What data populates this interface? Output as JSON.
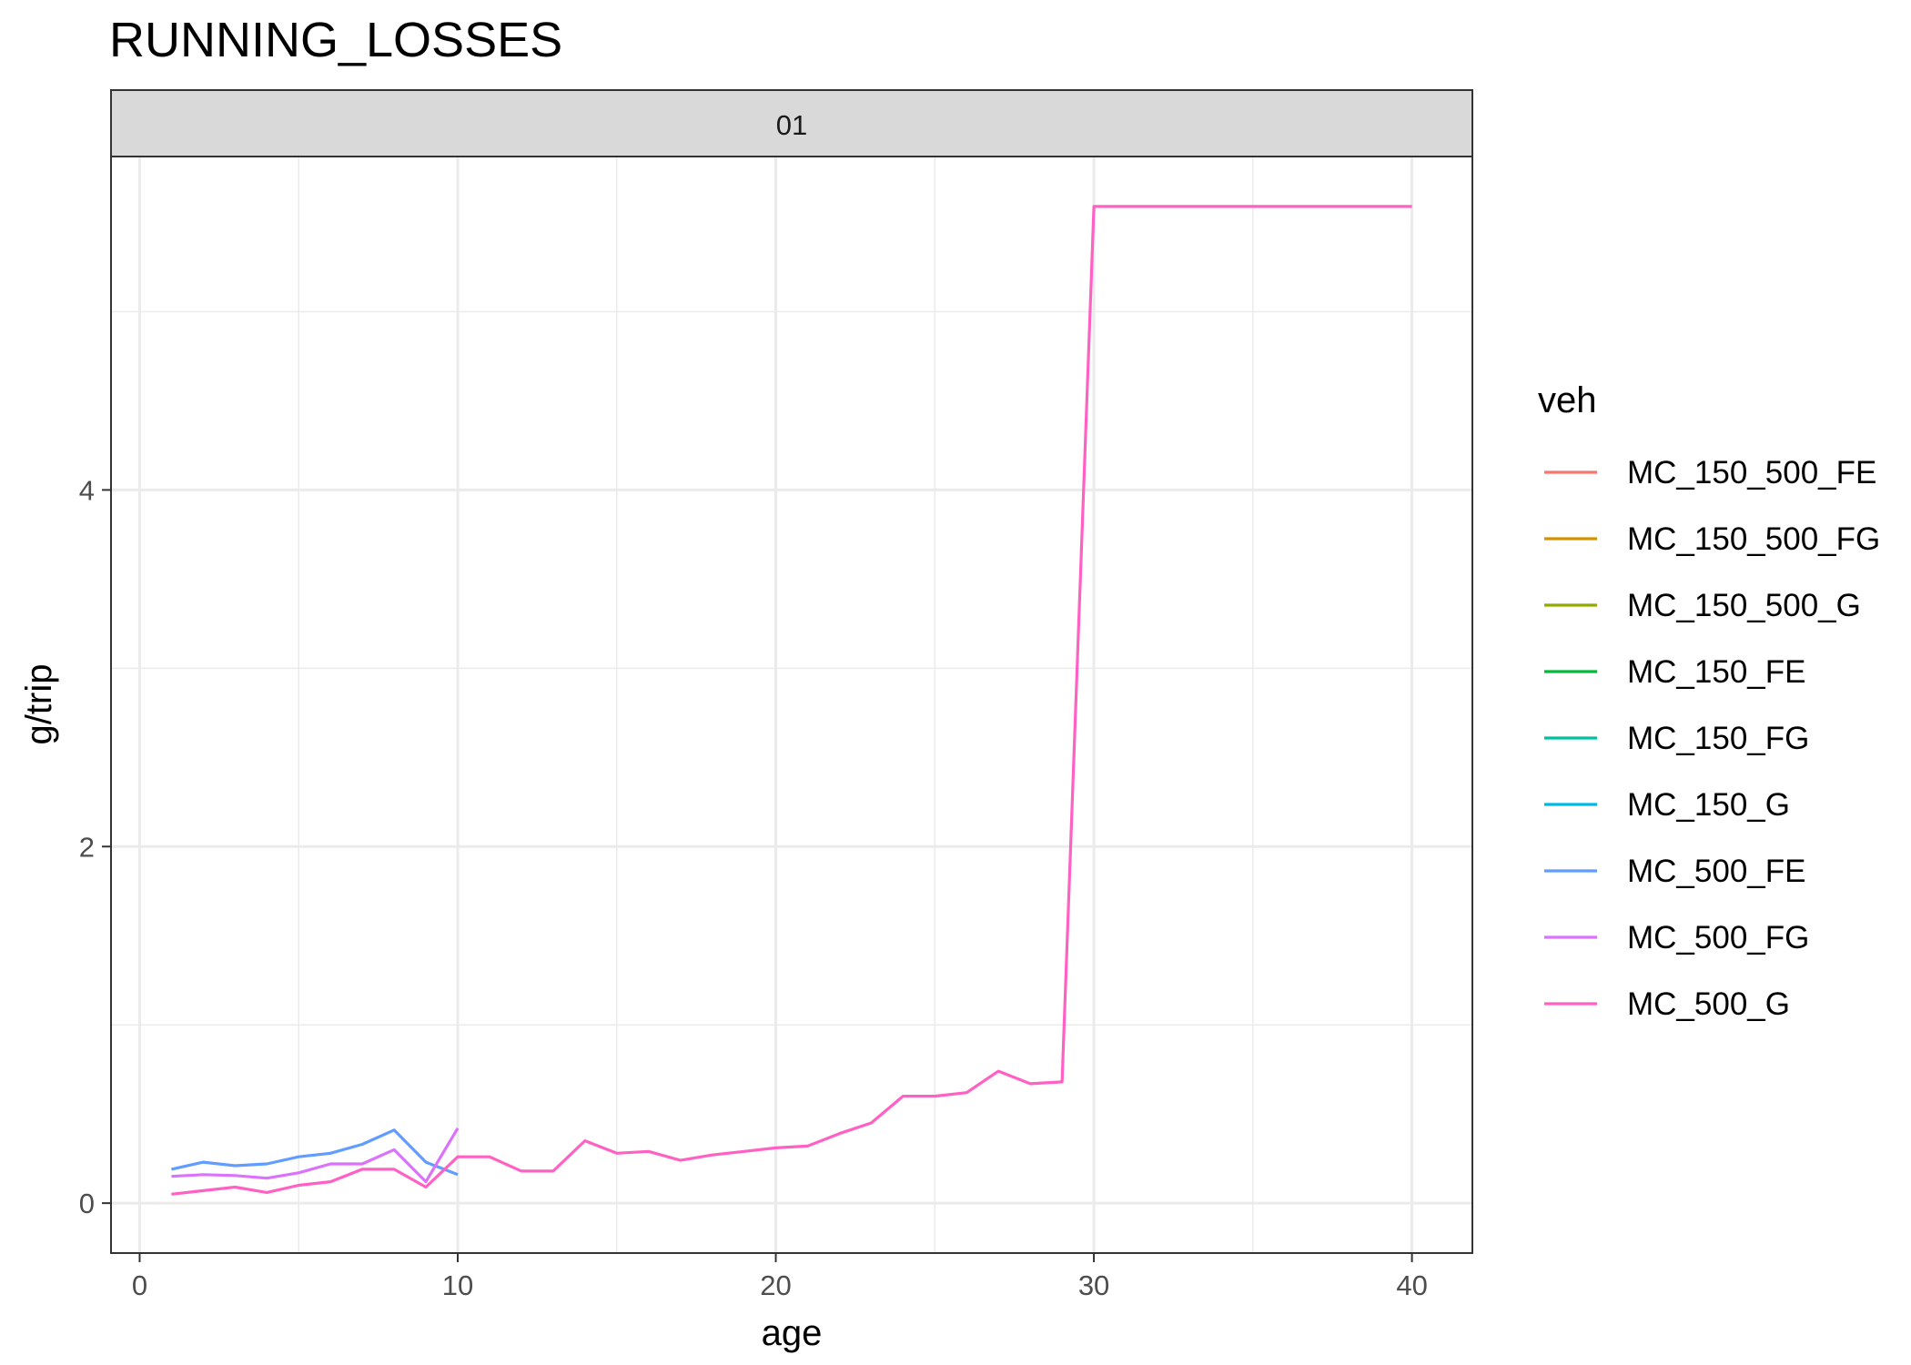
{
  "chart_data": {
    "type": "line",
    "title": "RUNNING_LOSSES",
    "facet_label": "01",
    "xlabel": "age",
    "ylabel": "g/trip",
    "xlim": [
      -0.9,
      41.9
    ],
    "ylim": [
      -0.28,
      5.87
    ],
    "x_ticks": [
      0,
      10,
      20,
      30,
      40
    ],
    "y_ticks": [
      0,
      2,
      4
    ],
    "grid": true,
    "legend": {
      "title": "veh",
      "placement": "right"
    },
    "series": [
      {
        "name": "MC_150_500_FE",
        "color": "#F8766D",
        "x": [],
        "y": []
      },
      {
        "name": "MC_150_500_FG",
        "color": "#D39200",
        "x": [],
        "y": []
      },
      {
        "name": "MC_150_500_G",
        "color": "#93AA00",
        "x": [],
        "y": []
      },
      {
        "name": "MC_150_FE",
        "color": "#00BA38",
        "x": [],
        "y": []
      },
      {
        "name": "MC_150_FG",
        "color": "#00C19F",
        "x": [],
        "y": []
      },
      {
        "name": "MC_150_G",
        "color": "#00B9E3",
        "x": [],
        "y": []
      },
      {
        "name": "MC_500_FE",
        "color": "#619CFF",
        "x": [
          1,
          2,
          3,
          4,
          5,
          6,
          7,
          8,
          9,
          10
        ],
        "y": [
          0.19,
          0.23,
          0.21,
          0.22,
          0.26,
          0.28,
          0.33,
          0.41,
          0.23,
          0.16
        ]
      },
      {
        "name": "MC_500_FG",
        "color": "#DB72FB",
        "x": [
          1,
          2,
          3,
          4,
          5,
          6,
          7,
          8,
          9,
          10
        ],
        "y": [
          0.15,
          0.16,
          0.155,
          0.14,
          0.17,
          0.22,
          0.22,
          0.3,
          0.12,
          0.42
        ]
      },
      {
        "name": "MC_500_G",
        "color": "#FF61C3",
        "x": [
          1,
          2,
          3,
          4,
          5,
          6,
          7,
          8,
          9,
          10,
          11,
          12,
          13,
          14,
          15,
          16,
          17,
          18,
          19,
          20,
          21,
          22,
          23,
          24,
          25,
          26,
          27,
          28,
          29,
          30,
          31,
          32,
          33,
          34,
          35,
          36,
          37,
          38,
          39,
          40
        ],
        "y": [
          0.05,
          0.07,
          0.09,
          0.06,
          0.1,
          0.12,
          0.19,
          0.19,
          0.09,
          0.26,
          0.26,
          0.18,
          0.18,
          0.35,
          0.28,
          0.29,
          0.24,
          0.27,
          0.29,
          0.31,
          0.32,
          0.39,
          0.45,
          0.6,
          0.6,
          0.62,
          0.74,
          0.67,
          0.68,
          5.59,
          5.59,
          5.59,
          5.59,
          5.59,
          5.59,
          5.59,
          5.59,
          5.59,
          5.59,
          5.59
        ]
      }
    ]
  }
}
